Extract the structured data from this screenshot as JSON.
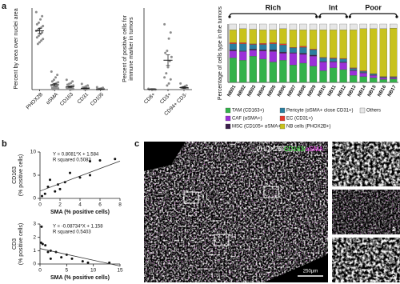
{
  "panel_labels": [
    "a",
    "b",
    "c"
  ],
  "chart_data": [
    {
      "type": "dot",
      "ylabel": [
        "Percent by area over nuclei area"
      ],
      "categories": [
        "PHOX2B",
        "αSMA",
        "CD163",
        "CD31",
        "CD105"
      ],
      "points": [
        [
          95,
          90,
          86,
          82,
          80,
          78,
          76,
          75,
          73,
          72,
          70,
          68,
          66,
          64,
          62,
          60,
          58,
          56
        ],
        [
          22,
          18,
          15,
          12,
          10,
          9,
          8,
          7,
          6,
          5,
          4,
          3,
          2.5,
          2,
          1.5,
          1,
          0.5,
          0.3
        ],
        [
          12,
          10,
          8,
          7,
          6,
          5,
          4,
          3.5,
          3,
          2.5,
          2,
          1.5,
          1,
          0.8,
          0.5,
          0.3
        ],
        [
          7,
          5,
          4,
          3,
          2.5,
          2,
          1.5,
          1.2,
          1,
          0.8,
          0.5,
          0.3,
          0.2
        ],
        [
          3,
          2.2,
          1.5,
          1,
          0.8,
          0.5,
          0.4,
          0.3,
          0.2,
          0.1
        ]
      ],
      "means": [
        72,
        6,
        3.5,
        1.5,
        0.6
      ],
      "errors": [
        3,
        1.5,
        0.8,
        0.5,
        0.3
      ],
      "color": "#8c8c8c",
      "ylim": [
        0,
        100
      ]
    },
    {
      "type": "dot",
      "ylabel": [
        "Percent of positive cells for",
        "immune marker in tumors"
      ],
      "categories": [
        "CD8+",
        "CD3+",
        "CD94+ CD3-"
      ],
      "points": [
        [
          0.02,
          0.01,
          0.01,
          0.01,
          0.0,
          0.0,
          0.0
        ],
        [
          1.6,
          1.4,
          1.25,
          0.95,
          0.9,
          0.8,
          0.7,
          0.55,
          0.4,
          0.3,
          0.25,
          0.15,
          0.1
        ],
        [
          0.15,
          0.1,
          0.08,
          0.06,
          0.05,
          0.03,
          0.02,
          0.01
        ]
      ],
      "means": [
        0.01,
        0.72,
        0.05
      ],
      "errors": [
        0.005,
        0.13,
        0.02
      ],
      "color": "#8c8c8c",
      "ylim": [
        0,
        2
      ]
    },
    {
      "type": "stacked_bar",
      "ylabel": [
        "Percentage of cells type in the tumors"
      ],
      "categories": [
        "NB01",
        "NB02",
        "NB03",
        "NB04",
        "NB05",
        "NB06",
        "NB07",
        "NB08",
        "NB09",
        "NB10",
        "NB11",
        "NB12",
        "NB13",
        "NB14",
        "NB15",
        "NB16",
        "NB17"
      ],
      "groups": [
        {
          "label": "Rich",
          "first": "NB01",
          "last": "NB09"
        },
        {
          "label": "Int",
          "first": "NB10",
          "last": "NB12"
        },
        {
          "label": "Poor",
          "first": "NB13",
          "last": "NB17"
        }
      ],
      "series": [
        {
          "name": "TAM (CD163+)",
          "color": "#33b24a",
          "values": [
            42,
            38,
            45,
            40,
            35,
            38,
            30,
            33,
            28,
            20,
            25,
            22,
            12,
            10,
            8,
            5,
            6
          ]
        },
        {
          "name": "CAF (αSMA+)",
          "color": "#9b30d9",
          "values": [
            12,
            15,
            10,
            14,
            18,
            12,
            20,
            15,
            17,
            15,
            10,
            12,
            8,
            6,
            4,
            3,
            2
          ]
        },
        {
          "name": "MSC (CD105+ αSMA+)",
          "color": "#3a1f4a",
          "values": [
            2,
            1,
            2,
            2,
            3,
            2,
            1,
            2,
            2,
            1,
            1,
            1,
            1,
            1,
            0.5,
            0.5,
            0.5
          ]
        },
        {
          "name": "Pericyte (αSMA+ close CD31+)",
          "color": "#2a7fa0",
          "values": [
            10,
            12,
            8,
            9,
            10,
            12,
            8,
            10,
            9,
            6,
            5,
            5,
            3,
            2,
            2,
            1,
            1
          ]
        },
        {
          "name": "EC (CD31+)",
          "color": "#e8382b",
          "values": [
            2,
            2,
            1,
            2,
            2,
            2,
            1,
            2,
            1,
            1,
            1,
            1,
            1,
            1,
            0.5,
            0.5,
            0.5
          ]
        },
        {
          "name": "NB cells (PHOX2B+)",
          "color": "#c8c21c",
          "values": [
            22,
            24,
            25,
            23,
            22,
            26,
            30,
            28,
            33,
            47,
            48,
            49,
            65,
            72,
            77,
            82,
            83
          ]
        },
        {
          "name": "Others",
          "color": "#e6e6e6",
          "values": [
            10,
            8,
            9,
            10,
            10,
            8,
            10,
            10,
            10,
            10,
            10,
            10,
            10,
            8,
            8,
            8,
            7
          ]
        }
      ],
      "ylim": [
        0,
        100
      ]
    },
    {
      "type": "scatter",
      "ylabel": [
        "CD163",
        "(% positive cells)"
      ],
      "xlabel": "SMA (% positive cells)",
      "annotations": [
        "Y = 0.8081*X + 1.584",
        "R squared    0.5083"
      ],
      "fit": {
        "slope": 0.8081,
        "intercept": 1.584
      },
      "x": [
        0.2,
        0.5,
        0.8,
        1,
        1.5,
        1.8,
        2,
        2.5,
        3,
        4,
        5,
        5,
        6,
        7.5
      ],
      "y": [
        0.5,
        1,
        2.5,
        4,
        1.5,
        3,
        2,
        3.5,
        5.5,
        4.5,
        5,
        8,
        8.2,
        8.5
      ],
      "color": "#111111",
      "xlim": [
        0,
        8
      ],
      "xticks": [
        0,
        2,
        4,
        6,
        8
      ],
      "ylim": [
        0,
        10
      ],
      "yticks": [
        0,
        5,
        10
      ]
    },
    {
      "type": "scatter",
      "ylabel": [
        "CD3",
        "(% positive cells)"
      ],
      "xlabel": "SMA (% positive cells)",
      "annotations": [
        "Y = -0.08734*X + 1.158",
        "R squared    0.5403"
      ],
      "fit": {
        "slope": -0.08734,
        "intercept": 1.158
      },
      "x": [
        0.3,
        0.2,
        0.5,
        1,
        1.5,
        2,
        2,
        3,
        4,
        5,
        6,
        8,
        9,
        13
      ],
      "y": [
        2.8,
        1.6,
        1.5,
        1.4,
        0.9,
        0.4,
        1,
        0.9,
        0.5,
        0.7,
        0.4,
        0.2,
        0.1,
        0.1
      ],
      "color": "#111111",
      "xlim": [
        0,
        15
      ],
      "xticks": [
        0,
        5,
        10,
        15
      ],
      "ylim": [
        0,
        3
      ],
      "yticks": [
        0,
        1,
        2,
        3
      ]
    }
  ],
  "micrograph": {
    "title_parts": [
      {
        "text": "PHOX2B/",
        "color": "#ffffff"
      },
      {
        "text": "CD163/",
        "color": "#4cff4c"
      },
      {
        "text": "αSMA",
        "color": "#ff4cff"
      }
    ],
    "regions": [
      "1",
      "2",
      "3"
    ],
    "scale_bar": "250µm",
    "insets": [
      "1",
      "2",
      "3"
    ]
  }
}
